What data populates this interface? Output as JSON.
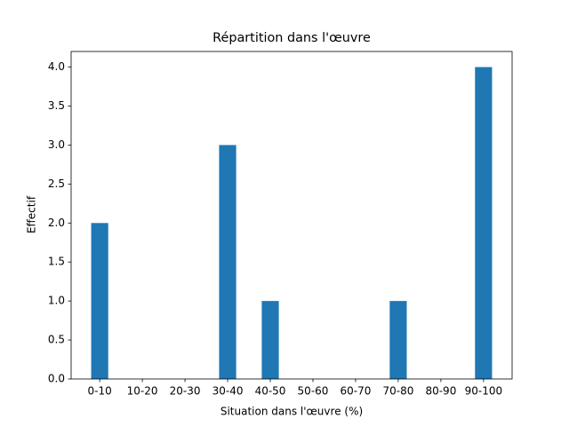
{
  "chart_data": {
    "type": "bar",
    "title": "Répartition dans l'œuvre",
    "xlabel": "Situation dans l'œuvre (%)",
    "ylabel": "Effectif",
    "categories": [
      "0-10",
      "10-20",
      "20-30",
      "30-40",
      "40-50",
      "50-60",
      "60-70",
      "70-80",
      "80-90",
      "90-100"
    ],
    "values": [
      2,
      0,
      0,
      3,
      1,
      0,
      0,
      1,
      0,
      4
    ],
    "color": "#1f77b4",
    "ylim": [
      0,
      4.2
    ],
    "yticks": [
      {
        "value": 0,
        "label": "0.0"
      },
      {
        "value": 0.5,
        "label": "0.5"
      },
      {
        "value": 1,
        "label": "1.0"
      },
      {
        "value": 1.5,
        "label": "1.5"
      },
      {
        "value": 2,
        "label": "2.0"
      },
      {
        "value": 2.5,
        "label": "2.5"
      },
      {
        "value": 3,
        "label": "3.0"
      },
      {
        "value": 3.5,
        "label": "3.5"
      },
      {
        "value": 4,
        "label": "4.0"
      }
    ],
    "grid": false
  }
}
